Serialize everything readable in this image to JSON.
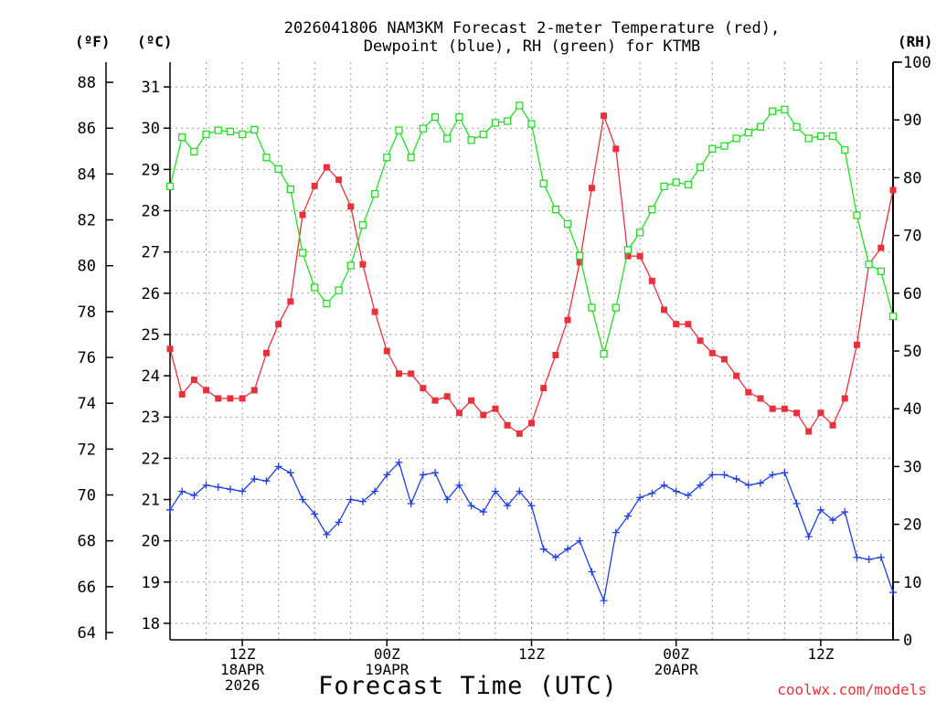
{
  "title_line1": "2026041806 NAM3KM Forecast 2-meter Temperature (red),",
  "title_line2": "Dewpoint (blue), RH (green) for KTMB",
  "unit_f": "(ºF)",
  "unit_c": "(ºC)",
  "unit_rh": "(RH)",
  "xlabel": "Forecast Time (UTC)",
  "credit": "coolwx.com/models",
  "colors": {
    "temperature": "#e8313b",
    "dewpoint": "#1f3fe0",
    "rh": "#22dd22",
    "grid": "#999999"
  },
  "chart_data": {
    "type": "line",
    "x_unit": "forecast hours from 2026-04-18 06Z",
    "x": [
      0,
      1,
      2,
      3,
      4,
      5,
      6,
      7,
      8,
      9,
      10,
      11,
      12,
      13,
      14,
      15,
      16,
      17,
      18,
      19,
      20,
      21,
      22,
      23,
      24,
      25,
      26,
      27,
      28,
      29,
      30,
      31,
      32,
      33,
      34,
      35,
      36,
      37,
      38,
      39,
      40,
      41,
      42,
      43,
      44,
      45,
      46,
      47,
      48,
      49,
      50,
      51,
      52,
      53,
      54,
      55,
      56,
      57,
      58,
      59,
      60
    ],
    "xlim": [
      0,
      60
    ],
    "ylim_celsius": [
      17.6,
      31.6
    ],
    "ylim_fahrenheit": [
      63.68,
      88.88
    ],
    "ylim_rh": [
      0,
      100
    ],
    "x_ticks": [
      {
        "x": 6,
        "line1": "12Z",
        "line2": "18APR",
        "line3": "2026"
      },
      {
        "x": 18,
        "line1": "00Z",
        "line2": "19APR",
        "line3": ""
      },
      {
        "x": 30,
        "line1": "12Z",
        "line2": "",
        "line3": ""
      },
      {
        "x": 42,
        "line1": "00Z",
        "line2": "20APR",
        "line3": ""
      },
      {
        "x": 54,
        "line1": "12Z",
        "line2": "",
        "line3": ""
      }
    ],
    "y_ticks_celsius": [
      "18",
      "19",
      "20",
      "21",
      "22",
      "23",
      "24",
      "25",
      "26",
      "27",
      "28",
      "29",
      "30",
      "31"
    ],
    "y_ticks_fahrenheit": [
      "64",
      "66",
      "68",
      "70",
      "72",
      "74",
      "76",
      "78",
      "80",
      "82",
      "84",
      "86",
      "88"
    ],
    "y_ticks_rh": [
      "0",
      "10",
      "20",
      "30",
      "40",
      "50",
      "60",
      "70",
      "80",
      "90",
      "100"
    ],
    "series": [
      {
        "name": "Temperature (red)",
        "unit": "C",
        "marker": "filled-square",
        "values": [
          24.65,
          23.55,
          23.9,
          23.65,
          23.45,
          23.45,
          23.45,
          23.65,
          24.55,
          25.25,
          25.8,
          27.9,
          28.6,
          29.05,
          28.75,
          28.1,
          26.7,
          25.55,
          24.6,
          24.05,
          24.05,
          23.7,
          23.4,
          23.5,
          23.1,
          23.4,
          23.05,
          23.2,
          22.8,
          22.6,
          22.85,
          23.7,
          24.5,
          25.35,
          26.75,
          28.55,
          30.3,
          29.5,
          26.9,
          26.9,
          26.3,
          25.6,
          25.25,
          25.25,
          24.85,
          24.55,
          24.4,
          24.0,
          23.6,
          23.45,
          23.2,
          23.2,
          23.1,
          22.65,
          23.1,
          22.8,
          23.45,
          24.75,
          26.7,
          27.1,
          28.5
        ]
      },
      {
        "name": "Dewpoint (blue)",
        "unit": "C",
        "marker": "plus",
        "values": [
          20.75,
          21.2,
          21.1,
          21.35,
          21.3,
          21.25,
          21.2,
          21.5,
          21.45,
          21.8,
          21.65,
          21.0,
          20.65,
          20.15,
          20.45,
          21.0,
          20.95,
          21.2,
          21.6,
          21.9,
          20.9,
          21.6,
          21.65,
          21.0,
          21.35,
          20.85,
          20.7,
          21.2,
          20.85,
          21.2,
          20.85,
          19.8,
          19.6,
          19.8,
          20.0,
          19.25,
          18.55,
          20.2,
          20.6,
          21.05,
          21.15,
          21.35,
          21.2,
          21.1,
          21.35,
          21.6,
          21.6,
          21.5,
          21.35,
          21.4,
          21.6,
          21.65,
          20.9,
          20.1,
          20.75,
          20.5,
          20.7,
          19.6,
          19.55,
          19.6,
          18.75
        ]
      },
      {
        "name": "RH (green)",
        "unit": "%",
        "marker": "open-square",
        "values": [
          78.5,
          87.0,
          84.5,
          87.5,
          88.2,
          88.0,
          87.5,
          88.3,
          83.5,
          81.5,
          78.0,
          67.0,
          61.0,
          58.2,
          60.5,
          64.8,
          71.8,
          77.2,
          83.5,
          88.2,
          83.5,
          88.5,
          90.5,
          86.8,
          90.5,
          86.5,
          87.5,
          89.5,
          89.8,
          92.5,
          89.3,
          79.0,
          74.5,
          72.0,
          66.5,
          57.5,
          49.5,
          57.5,
          67.5,
          70.5,
          74.5,
          78.5,
          79.2,
          78.8,
          81.8,
          85.0,
          85.5,
          86.8,
          87.8,
          88.8,
          91.5,
          91.8,
          88.8,
          86.8,
          87.2,
          87.2,
          84.8,
          73.5,
          65.0,
          63.8,
          56.0
        ]
      }
    ]
  }
}
